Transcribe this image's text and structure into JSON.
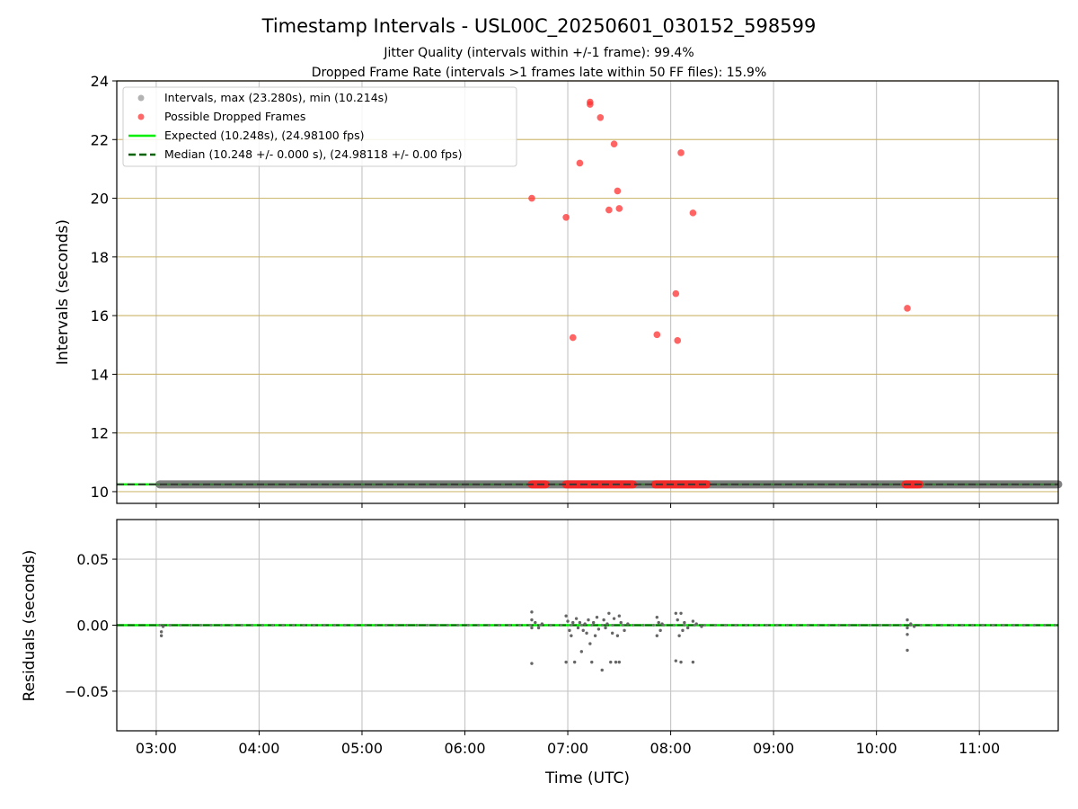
{
  "chart_data": {
    "type": "scatter",
    "title": "Timestamp Intervals - USL00C_20250601_030152_598599",
    "subtitle_lines": [
      "Jitter Quality (intervals within +/-1 frame): 99.4%",
      "Dropped Frame Rate (intervals >1 frames late within 50 FF files): 15.9%"
    ],
    "xlabel": "Time (UTC)",
    "x_ticks": [
      "03:00",
      "04:00",
      "05:00",
      "06:00",
      "07:00",
      "08:00",
      "09:00",
      "10:00",
      "11:00"
    ],
    "x_range": [
      "02:37",
      "11:46"
    ],
    "panels": [
      {
        "ylabel": "Intervals (seconds)",
        "ylim": [
          9.6,
          24
        ],
        "y_ticks": [
          10,
          12,
          14,
          16,
          18,
          20,
          22,
          24
        ],
        "y_grid_color": "#c8b060",
        "grid": true,
        "legend": {
          "placement": "top-left",
          "entries": [
            {
              "label": "Intervals, max (23.280s), min (10.214s)",
              "marker": "dot",
              "color": "#999999"
            },
            {
              "label": "Possible Dropped Frames",
              "marker": "dot",
              "color": "#ff4d4d"
            },
            {
              "label": "Expected (10.248s), (24.98100 fps)",
              "marker": "solid-line",
              "color": "#00ee00"
            },
            {
              "label": "Median (10.248 +/- 0.000 s), (24.98118 +/- 0.00 fps)",
              "marker": "dashed-line",
              "color": "#006400"
            }
          ]
        },
        "expected_value": 10.248,
        "median_value": 10.248,
        "intervals_range": [
          "03:02",
          "11:46"
        ],
        "intervals_value": 10.248,
        "dropped_frames": [
          {
            "x": "06:39",
            "y": 20.0
          },
          {
            "x": "06:59",
            "y": 19.35
          },
          {
            "x": "07:03",
            "y": 15.25
          },
          {
            "x": "07:07",
            "y": 21.2
          },
          {
            "x": "07:13",
            "y": 23.28
          },
          {
            "x": "07:13",
            "y": 23.2
          },
          {
            "x": "07:19",
            "y": 22.75
          },
          {
            "x": "07:24",
            "y": 19.6
          },
          {
            "x": "07:27",
            "y": 21.85
          },
          {
            "x": "07:29",
            "y": 20.25
          },
          {
            "x": "07:30",
            "y": 19.65
          },
          {
            "x": "07:52",
            "y": 15.35
          },
          {
            "x": "08:03",
            "y": 16.75
          },
          {
            "x": "08:04",
            "y": 15.15
          },
          {
            "x": "08:06",
            "y": 21.55
          },
          {
            "x": "08:13",
            "y": 19.5
          },
          {
            "x": "10:18",
            "y": 16.25
          }
        ],
        "dropped_frames_baseline_ranges": [
          [
            "06:39",
            "06:47"
          ],
          [
            "06:59",
            "07:38"
          ],
          [
            "07:51",
            "08:21"
          ],
          [
            "10:17",
            "10:25"
          ]
        ]
      },
      {
        "ylabel": "Residuals (seconds)",
        "ylim": [
          -0.08,
          0.08
        ],
        "y_ticks": [
          "−0.05",
          "0.00",
          "0.05"
        ],
        "y_tick_values": [
          -0.05,
          0.0,
          0.05
        ],
        "grid": true,
        "zero_line": 0.0,
        "residuals": [
          {
            "x": "03:03",
            "y": -0.005
          },
          {
            "x": "03:03",
            "y": -0.008
          },
          {
            "x": "03:04",
            "y": -0.001
          },
          {
            "x": "06:39",
            "y": 0.01
          },
          {
            "x": "06:39",
            "y": 0.004
          },
          {
            "x": "06:39",
            "y": -0.002
          },
          {
            "x": "06:39",
            "y": -0.029
          },
          {
            "x": "06:41",
            "y": 0.002
          },
          {
            "x": "06:43",
            "y": -0.002
          },
          {
            "x": "06:45",
            "y": 0.001
          },
          {
            "x": "06:59",
            "y": 0.007
          },
          {
            "x": "06:59",
            "y": -0.028
          },
          {
            "x": "07:00",
            "y": 0.003
          },
          {
            "x": "07:01",
            "y": -0.004
          },
          {
            "x": "07:02",
            "y": -0.008
          },
          {
            "x": "07:03",
            "y": 0.002
          },
          {
            "x": "07:04",
            "y": -0.028
          },
          {
            "x": "07:05",
            "y": 0.005
          },
          {
            "x": "07:06",
            "y": -0.002
          },
          {
            "x": "07:07",
            "y": 0.002
          },
          {
            "x": "07:08",
            "y": -0.02
          },
          {
            "x": "07:09",
            "y": -0.004
          },
          {
            "x": "07:10",
            "y": 0.001
          },
          {
            "x": "07:11",
            "y": -0.006
          },
          {
            "x": "07:12",
            "y": 0.004
          },
          {
            "x": "07:13",
            "y": -0.014
          },
          {
            "x": "07:14",
            "y": -0.028
          },
          {
            "x": "07:15",
            "y": 0.002
          },
          {
            "x": "07:16",
            "y": -0.008
          },
          {
            "x": "07:17",
            "y": 0.006
          },
          {
            "x": "07:18",
            "y": -0.003
          },
          {
            "x": "07:20",
            "y": -0.034
          },
          {
            "x": "07:21",
            "y": 0.004
          },
          {
            "x": "07:22",
            "y": -0.002
          },
          {
            "x": "07:23",
            "y": 0.001
          },
          {
            "x": "07:24",
            "y": 0.009
          },
          {
            "x": "07:25",
            "y": -0.028
          },
          {
            "x": "07:26",
            "y": -0.006
          },
          {
            "x": "07:27",
            "y": 0.005
          },
          {
            "x": "07:28",
            "y": -0.028
          },
          {
            "x": "07:29",
            "y": -0.008
          },
          {
            "x": "07:30",
            "y": 0.007
          },
          {
            "x": "07:30",
            "y": -0.028
          },
          {
            "x": "07:31",
            "y": 0.002
          },
          {
            "x": "07:33",
            "y": -0.004
          },
          {
            "x": "07:35",
            "y": 0.001
          },
          {
            "x": "07:52",
            "y": 0.006
          },
          {
            "x": "07:52",
            "y": -0.008
          },
          {
            "x": "07:53",
            "y": 0.002
          },
          {
            "x": "07:54",
            "y": -0.004
          },
          {
            "x": "07:55",
            "y": 0.001
          },
          {
            "x": "08:03",
            "y": 0.009
          },
          {
            "x": "08:03",
            "y": -0.027
          },
          {
            "x": "08:04",
            "y": 0.004
          },
          {
            "x": "08:05",
            "y": -0.008
          },
          {
            "x": "08:06",
            "y": 0.009
          },
          {
            "x": "08:06",
            "y": -0.028
          },
          {
            "x": "08:07",
            "y": -0.004
          },
          {
            "x": "08:08",
            "y": 0.002
          },
          {
            "x": "08:10",
            "y": -0.002
          },
          {
            "x": "08:13",
            "y": 0.003
          },
          {
            "x": "08:13",
            "y": -0.028
          },
          {
            "x": "08:15",
            "y": 0.001
          },
          {
            "x": "08:18",
            "y": -0.001
          },
          {
            "x": "10:18",
            "y": 0.004
          },
          {
            "x": "10:18",
            "y": -0.002
          },
          {
            "x": "10:18",
            "y": -0.007
          },
          {
            "x": "10:18",
            "y": -0.019
          },
          {
            "x": "10:20",
            "y": 0.001
          },
          {
            "x": "10:22",
            "y": -0.001
          }
        ]
      }
    ]
  }
}
